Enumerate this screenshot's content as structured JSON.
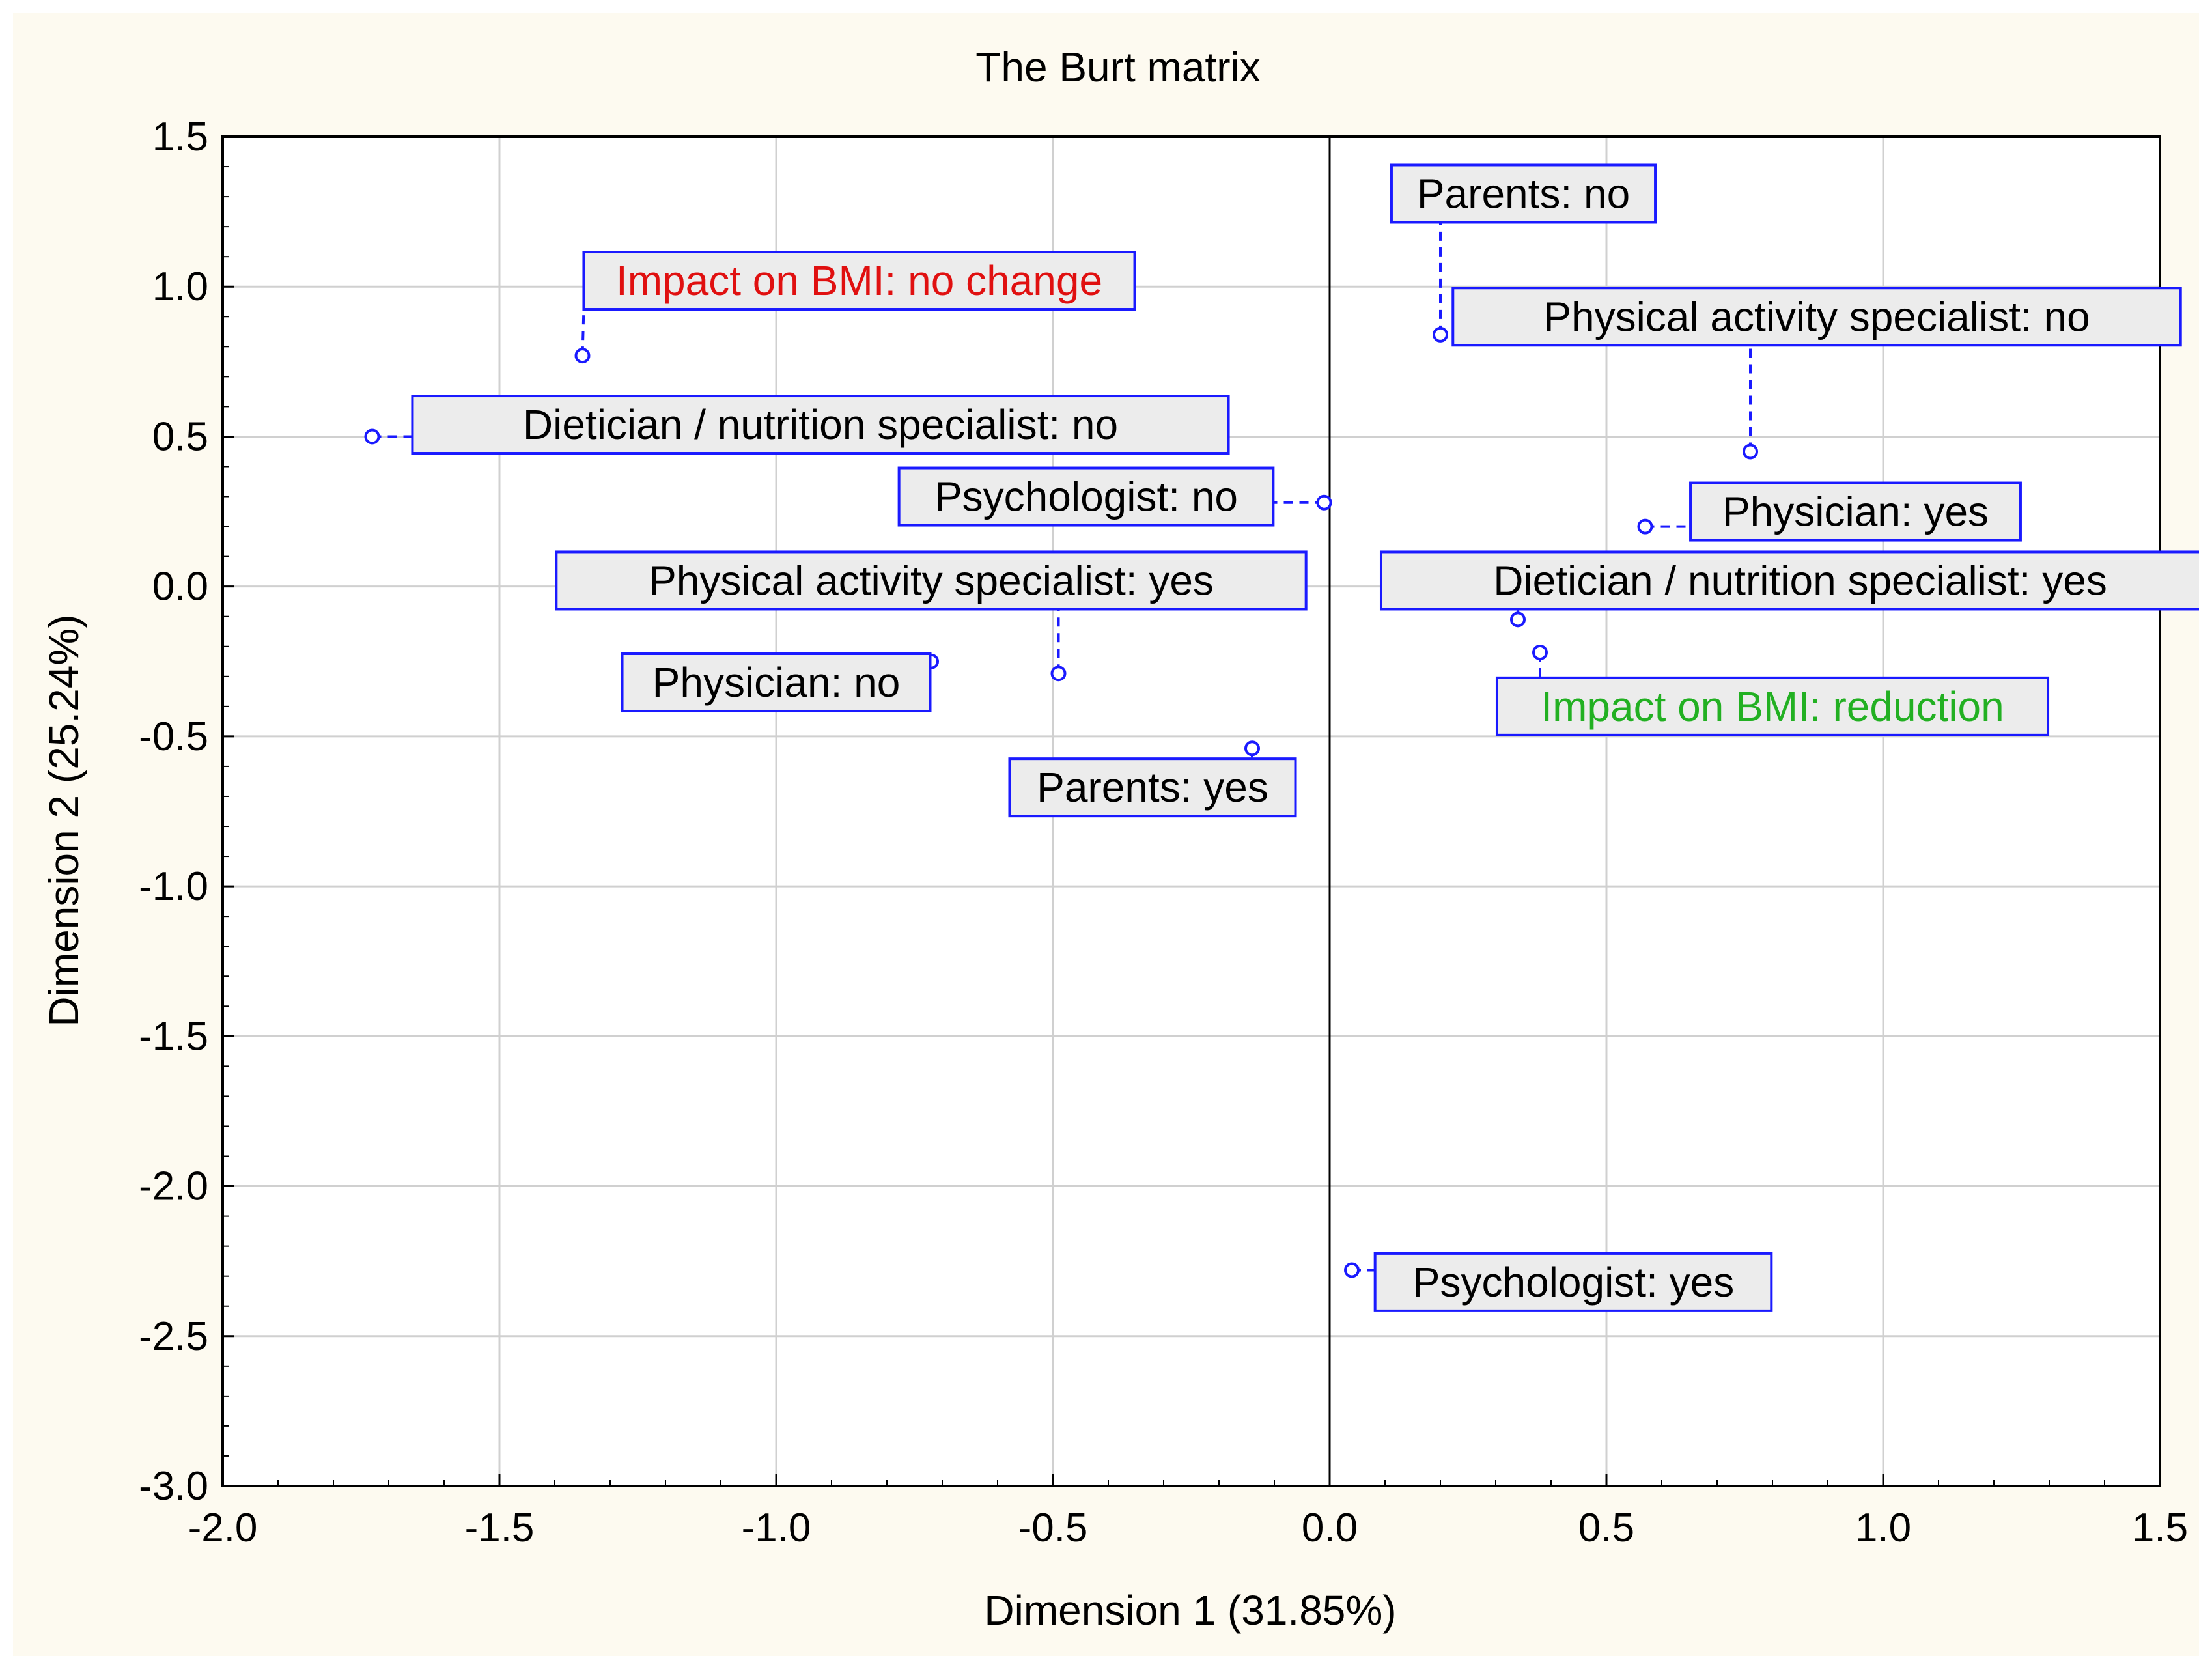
{
  "chart_data": {
    "type": "scatter",
    "title": "The Burt matrix",
    "xlabel": "Dimension 1 (31.85%)",
    "ylabel": "Dimension 2 (25.24%)",
    "xlim": [
      -2.0,
      1.5
    ],
    "ylim": [
      -3.0,
      1.5
    ],
    "xticks": [
      "-2.0",
      "-1.5",
      "-1.0",
      "-0.5",
      "0.0",
      "0.5",
      "1.0",
      "1.5"
    ],
    "yticks": [
      "1.5",
      "1.0",
      "0.5",
      "0.0",
      "-0.5",
      "-1.0",
      "-1.5",
      "-2.0",
      "-2.5",
      "-3.0"
    ],
    "grid": true,
    "colors": {
      "point": "#1a1aff",
      "label_default": "#000000",
      "label_no_change": "#e01010",
      "label_reduction": "#22b022",
      "label_fill": "#ececec"
    },
    "points": [
      {
        "label": "Parents: no",
        "x": 0.2,
        "y": 0.84,
        "lx": 0.35,
        "ly": 1.31,
        "color": "label_default"
      },
      {
        "label": "Impact on BMI: no change",
        "x": -1.35,
        "y": 0.77,
        "lx": -0.85,
        "ly": 1.02,
        "color": "label_no_change"
      },
      {
        "label": "Physical activity specialist: no",
        "x": 0.76,
        "y": 0.45,
        "lx": 0.88,
        "ly": 0.9,
        "color": "label_default"
      },
      {
        "label": "Dietician / nutrition specialist: no",
        "x": -1.73,
        "y": 0.5,
        "lx": -0.92,
        "ly": 0.54,
        "color": "label_default"
      },
      {
        "label": "Psychologist: no",
        "x": -0.01,
        "y": 0.28,
        "lx": -0.44,
        "ly": 0.3,
        "color": "label_default"
      },
      {
        "label": "Physician: yes",
        "x": 0.57,
        "y": 0.2,
        "lx": 0.95,
        "ly": 0.25,
        "color": "label_default"
      },
      {
        "label": "Physical activity specialist: yes",
        "x": -0.49,
        "y": -0.29,
        "lx": -0.72,
        "ly": 0.02,
        "color": "label_default"
      },
      {
        "label": "Dietician / nutrition specialist: yes",
        "x": 0.34,
        "y": -0.11,
        "lx": 0.85,
        "ly": 0.02,
        "color": "label_default"
      },
      {
        "label": "Physician: no",
        "x": -0.72,
        "y": -0.25,
        "lx": -1.0,
        "ly": -0.32,
        "color": "label_default"
      },
      {
        "label": "Impact on BMI: reduction",
        "x": 0.38,
        "y": -0.22,
        "lx": 0.8,
        "ly": -0.4,
        "color": "label_reduction"
      },
      {
        "label": "Parents: yes",
        "x": -0.14,
        "y": -0.54,
        "lx": -0.32,
        "ly": -0.67,
        "color": "label_default"
      },
      {
        "label": "Psychologist: yes",
        "x": 0.04,
        "y": -2.28,
        "lx": 0.44,
        "ly": -2.32,
        "color": "label_default"
      }
    ]
  }
}
